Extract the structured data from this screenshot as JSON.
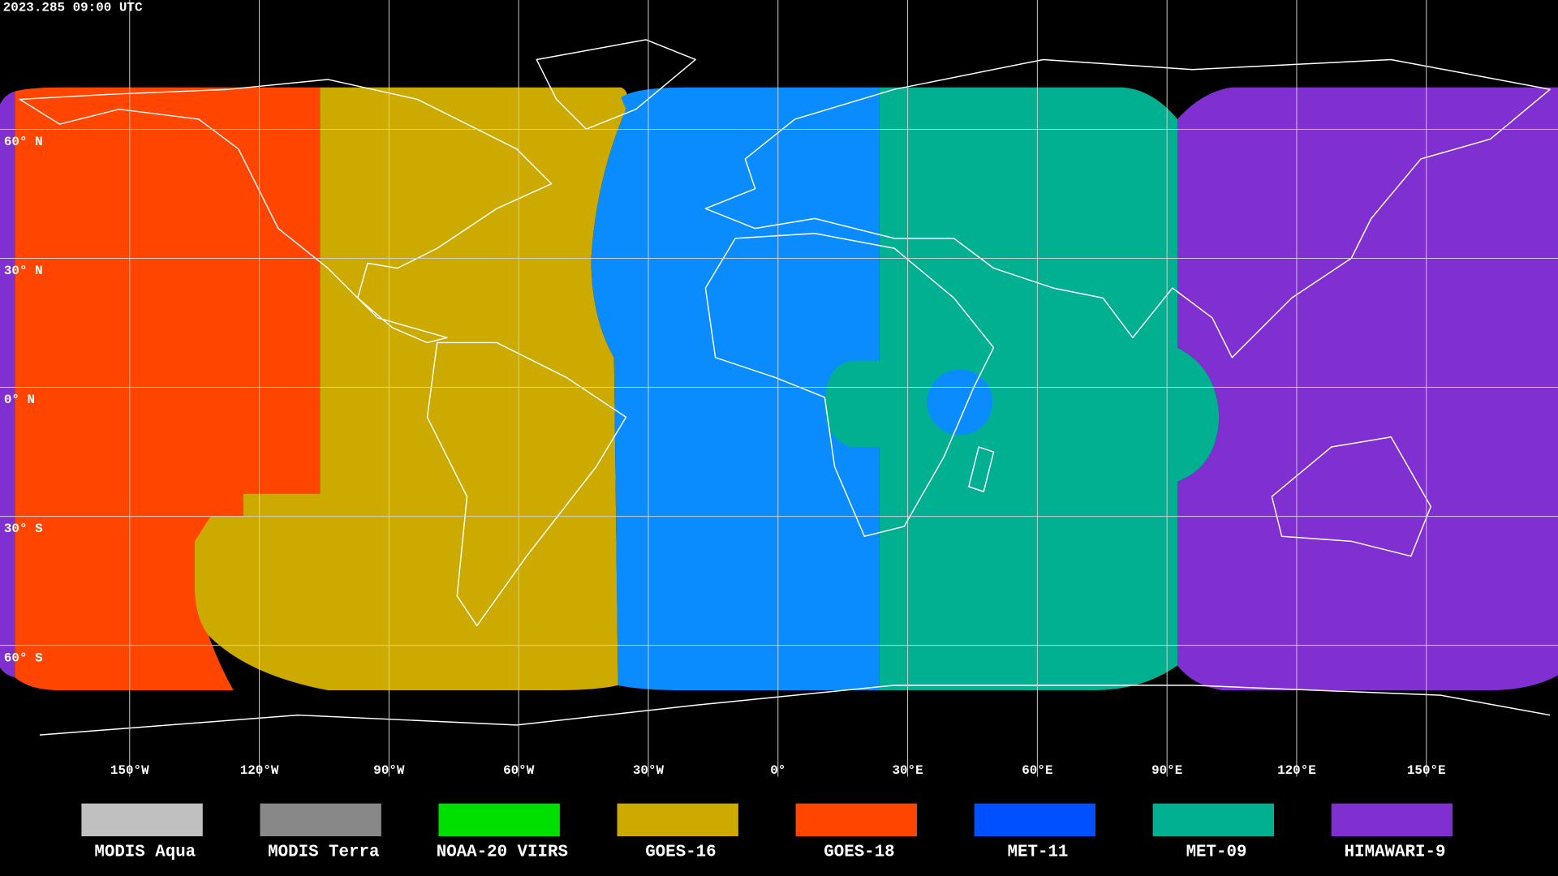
{
  "timestamp": "2023.285 09:00 UTC",
  "map": {
    "lat_ticks": [
      {
        "value": 60,
        "label": "60° N"
      },
      {
        "value": 30,
        "label": "30° N"
      },
      {
        "value": 0,
        "label": "0° N"
      },
      {
        "value": -30,
        "label": "30° S"
      },
      {
        "value": -60,
        "label": "60° S"
      }
    ],
    "lon_ticks": [
      {
        "value": -150,
        "label": "150°W"
      },
      {
        "value": -120,
        "label": "120°W"
      },
      {
        "value": -90,
        "label": "90°W"
      },
      {
        "value": -60,
        "label": "60°W"
      },
      {
        "value": -30,
        "label": "30°W"
      },
      {
        "value": 0,
        "label": "0°"
      },
      {
        "value": 30,
        "label": "30°E"
      },
      {
        "value": 60,
        "label": "60°E"
      },
      {
        "value": 90,
        "label": "90°E"
      },
      {
        "value": 120,
        "label": "120°E"
      },
      {
        "value": 150,
        "label": "150°E"
      }
    ]
  },
  "legend": [
    {
      "name": "MODIS Aqua",
      "color": "#c0c0c0"
    },
    {
      "name": "MODIS Terra",
      "color": "#888888"
    },
    {
      "name": "NOAA-20 VIIRS",
      "color": "#00e000"
    },
    {
      "name": "GOES-16",
      "color": "#ccaa00"
    },
    {
      "name": "GOES-18",
      "color": "#ff4500"
    },
    {
      "name": "MET-11",
      "color": "#0050ff"
    },
    {
      "name": "MET-09",
      "color": "#00b090"
    },
    {
      "name": "HIMAWARI-9",
      "color": "#8030d0"
    }
  ]
}
